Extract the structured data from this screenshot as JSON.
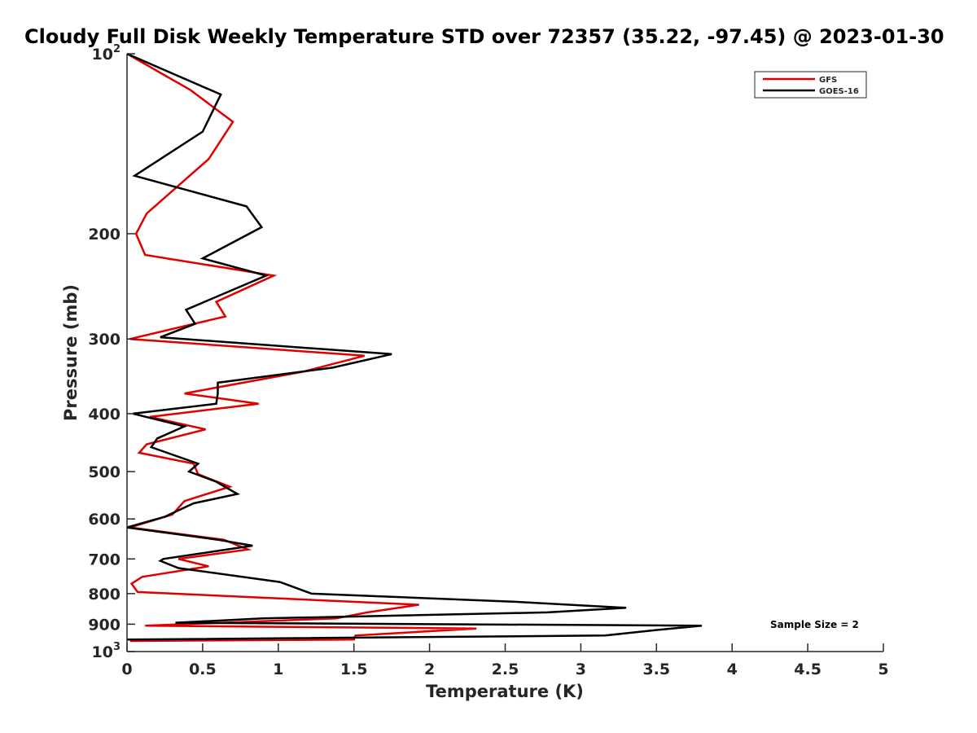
{
  "chart_data": {
    "type": "line",
    "title": "Cloudy Full Disk Weekly Temperature STD over 72357 (35.22, -97.45) @ 2023-01-30",
    "xlabel": "Temperature (K)",
    "ylabel": "Pressure (mb)",
    "xlim": [
      0,
      5
    ],
    "ylim": [
      1000,
      100
    ],
    "y_scale": "log",
    "y_reversed": true,
    "grid": false,
    "legend_position": "top-right",
    "x_ticks": [
      "0",
      "0.5",
      "1",
      "1.5",
      "2",
      "2.5",
      "3",
      "3.5",
      "4",
      "4.5",
      "5"
    ],
    "y_ticks": [
      {
        "value": 100,
        "base": "10",
        "exp": "2"
      },
      {
        "value": 200,
        "base": "200",
        "exp": ""
      },
      {
        "value": 300,
        "base": "300",
        "exp": ""
      },
      {
        "value": 400,
        "base": "400",
        "exp": ""
      },
      {
        "value": 500,
        "base": "500",
        "exp": ""
      },
      {
        "value": 600,
        "base": "600",
        "exp": ""
      },
      {
        "value": 700,
        "base": "700",
        "exp": ""
      },
      {
        "value": 800,
        "base": "800",
        "exp": ""
      },
      {
        "value": 900,
        "base": "900",
        "exp": ""
      },
      {
        "value": 1000,
        "base": "10",
        "exp": "3"
      }
    ],
    "annotation": "Sample Size = 2",
    "series": [
      {
        "name": "GFS",
        "color": "#e00000",
        "points": [
          [
            0.0,
            100
          ],
          [
            0.42,
            115
          ],
          [
            0.7,
            130
          ],
          [
            0.54,
            150
          ],
          [
            0.13,
            185
          ],
          [
            0.06,
            200
          ],
          [
            0.12,
            217
          ],
          [
            0.97,
            235
          ],
          [
            0.59,
            260
          ],
          [
            0.65,
            275
          ],
          [
            0.02,
            300
          ],
          [
            1.57,
            320
          ],
          [
            1.17,
            340
          ],
          [
            0.38,
            370
          ],
          [
            0.87,
            385
          ],
          [
            0.15,
            405
          ],
          [
            0.52,
            425
          ],
          [
            0.13,
            450
          ],
          [
            0.08,
            465
          ],
          [
            0.44,
            485
          ],
          [
            0.47,
            505
          ],
          [
            0.68,
            530
          ],
          [
            0.38,
            560
          ],
          [
            0.3,
            590
          ],
          [
            0.02,
            620
          ],
          [
            0.64,
            650
          ],
          [
            0.8,
            675
          ],
          [
            0.34,
            700
          ],
          [
            0.54,
            720
          ],
          [
            0.1,
            750
          ],
          [
            0.03,
            770
          ],
          [
            0.07,
            795
          ],
          [
            1.93,
            835
          ],
          [
            1.59,
            860
          ],
          [
            1.38,
            880
          ],
          [
            0.12,
            905
          ],
          [
            2.31,
            915
          ],
          [
            1.51,
            940
          ],
          [
            1.5,
            955
          ],
          [
            0.02,
            960
          ]
        ]
      },
      {
        "name": "GOES-16",
        "color": "#000000",
        "points": [
          [
            0.0,
            100
          ],
          [
            0.62,
            117
          ],
          [
            0.5,
            135
          ],
          [
            0.05,
            160
          ],
          [
            0.79,
            180
          ],
          [
            0.89,
            195
          ],
          [
            0.5,
            220
          ],
          [
            0.92,
            235
          ],
          [
            0.39,
            268
          ],
          [
            0.45,
            283
          ],
          [
            0.22,
            298
          ],
          [
            1.75,
            318
          ],
          [
            1.36,
            335
          ],
          [
            0.6,
            355
          ],
          [
            0.6,
            370
          ],
          [
            0.59,
            385
          ],
          [
            0.04,
            400
          ],
          [
            0.38,
            420
          ],
          [
            0.2,
            440
          ],
          [
            0.16,
            455
          ],
          [
            0.47,
            485
          ],
          [
            0.41,
            500
          ],
          [
            0.59,
            520
          ],
          [
            0.73,
            545
          ],
          [
            0.44,
            565
          ],
          [
            0.25,
            595
          ],
          [
            0.0,
            620
          ],
          [
            0.6,
            650
          ],
          [
            0.83,
            665
          ],
          [
            0.24,
            700
          ],
          [
            0.22,
            705
          ],
          [
            0.34,
            725
          ],
          [
            1.01,
            765
          ],
          [
            1.22,
            800
          ],
          [
            2.55,
            825
          ],
          [
            3.3,
            845
          ],
          [
            2.78,
            860
          ],
          [
            0.9,
            880
          ],
          [
            0.32,
            895
          ],
          [
            3.8,
            905
          ],
          [
            3.51,
            920
          ],
          [
            3.16,
            940
          ],
          [
            0.0,
            955
          ]
        ]
      }
    ]
  }
}
